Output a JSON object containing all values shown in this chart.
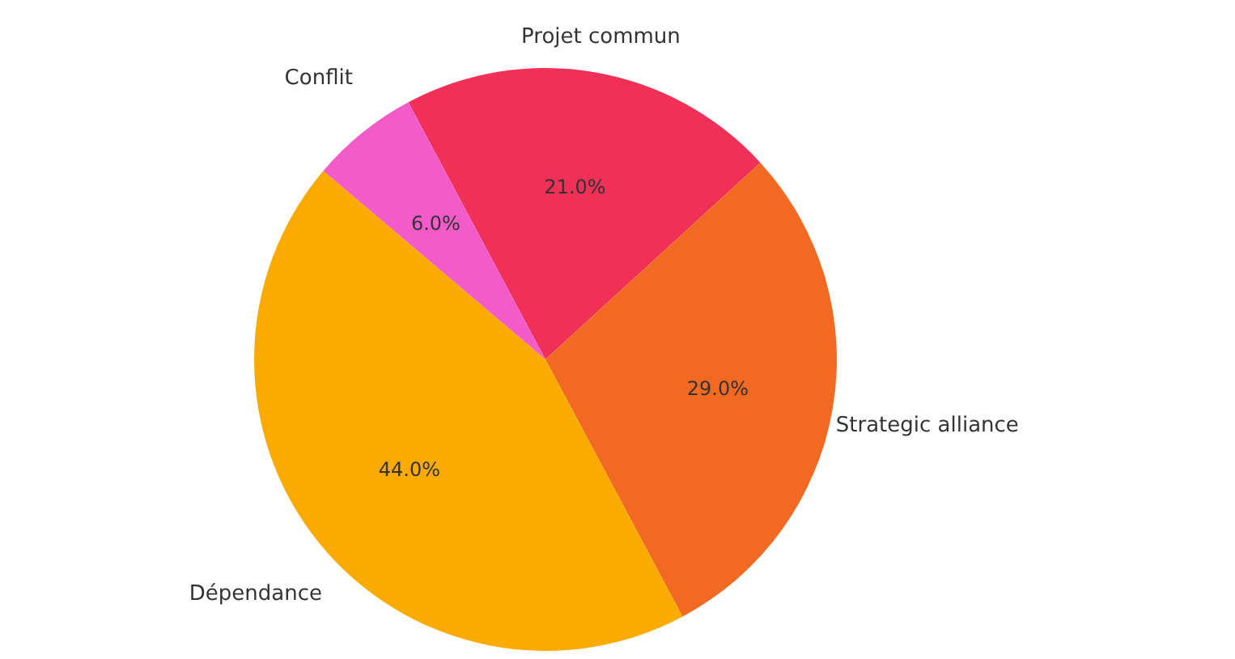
{
  "chart_data": {
    "type": "pie",
    "categories": [
      "Projet commun",
      "Strategic alliance",
      "Dépendance",
      "Conflit"
    ],
    "values": [
      21,
      29,
      44,
      6
    ],
    "colors": [
      "#f03057",
      "#f26a21",
      "#fbaa00",
      "#f25bc8"
    ],
    "value_labels": [
      "21.0%",
      "29.0%",
      "44.0%",
      "6.0%"
    ]
  }
}
